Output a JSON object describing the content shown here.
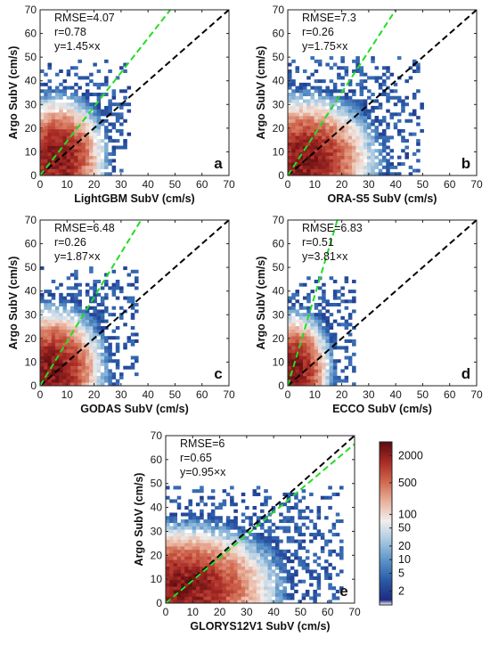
{
  "chart_data": [
    {
      "type": "heatmap",
      "panel_label": "a",
      "xlabel": "LightGBM SubV (cm/s)",
      "ylabel": "Argo SubV (cm/s)",
      "xlim": [
        0,
        70
      ],
      "ylim": [
        0,
        70
      ],
      "ticks": [
        0,
        10,
        20,
        30,
        40,
        50,
        60,
        70
      ],
      "stats": [
        "RMSE=4.07",
        "r=0.78",
        "y=1.45×x"
      ],
      "fit_slope": 1.45,
      "spread": {
        "x_max": 33,
        "y_max": 48,
        "core_x": 6,
        "core_y": 7
      }
    },
    {
      "type": "heatmap",
      "panel_label": "b",
      "xlabel": "ORA-S5 SubV (cm/s)",
      "ylabel": "Argo SubV (cm/s)",
      "xlim": [
        0,
        70
      ],
      "ylim": [
        0,
        70
      ],
      "ticks": [
        0,
        10,
        20,
        30,
        40,
        50,
        60,
        70
      ],
      "stats": [
        "RMSE=7.3",
        "r=0.26",
        "y=1.75×x"
      ],
      "fit_slope": 1.75,
      "spread": {
        "x_max": 50,
        "y_max": 50,
        "core_x": 5,
        "core_y": 6
      }
    },
    {
      "type": "heatmap",
      "panel_label": "c",
      "xlabel": "GODAS SubV (cm/s)",
      "ylabel": "Argo SubV (cm/s)",
      "xlim": [
        0,
        70
      ],
      "ylim": [
        0,
        70
      ],
      "ticks": [
        0,
        10,
        20,
        30,
        40,
        50,
        60,
        70
      ],
      "stats": [
        "RMSE=6.48",
        "r=0.26",
        "y=1.87×x"
      ],
      "fit_slope": 1.87,
      "spread": {
        "x_max": 36,
        "y_max": 50,
        "core_x": 4,
        "core_y": 6
      }
    },
    {
      "type": "heatmap",
      "panel_label": "d",
      "xlabel": "ECCO SubV (cm/s)",
      "ylabel": "Argo SubV (cm/s)",
      "xlim": [
        0,
        70
      ],
      "ylim": [
        0,
        70
      ],
      "ticks": [
        0,
        10,
        20,
        30,
        40,
        50,
        60,
        70
      ],
      "stats": [
        "RMSE=6.83",
        "r=0.51",
        "y=3.81×x"
      ],
      "fit_slope": 3.81,
      "spread": {
        "x_max": 25,
        "y_max": 45,
        "core_x": 2,
        "core_y": 6
      }
    },
    {
      "type": "heatmap",
      "panel_label": "e",
      "xlabel": "GLORYS12V1 SubV (cm/s)",
      "ylabel": "Argo SubV (cm/s)",
      "xlim": [
        0,
        70
      ],
      "ylim": [
        0,
        70
      ],
      "ticks": [
        0,
        10,
        20,
        30,
        40,
        50,
        60,
        70
      ],
      "stats": [
        "RMSE=6",
        "r=0.65",
        "y=0.95×x"
      ],
      "fit_slope": 0.95,
      "spread": {
        "x_max": 65,
        "y_max": 48,
        "core_x": 6,
        "core_y": 6
      }
    }
  ],
  "colorbar": {
    "scale": "log",
    "tick_labels": [
      "2000",
      "500",
      "100",
      "50",
      "20",
      "10",
      "5",
      "2"
    ],
    "tick_values": [
      2000,
      500,
      100,
      50,
      20,
      10,
      5,
      2
    ],
    "range": [
      1,
      4000
    ],
    "colors": [
      "#ffffff",
      "#1d2b80",
      "#2a5aa8",
      "#5b93c8",
      "#a7c8e0",
      "#f2eeec",
      "#e8b09a",
      "#d0664d",
      "#a82a25",
      "#5a0a0f"
    ]
  },
  "line_colors": {
    "identity": "#000000",
    "fit": "#22dd22"
  }
}
